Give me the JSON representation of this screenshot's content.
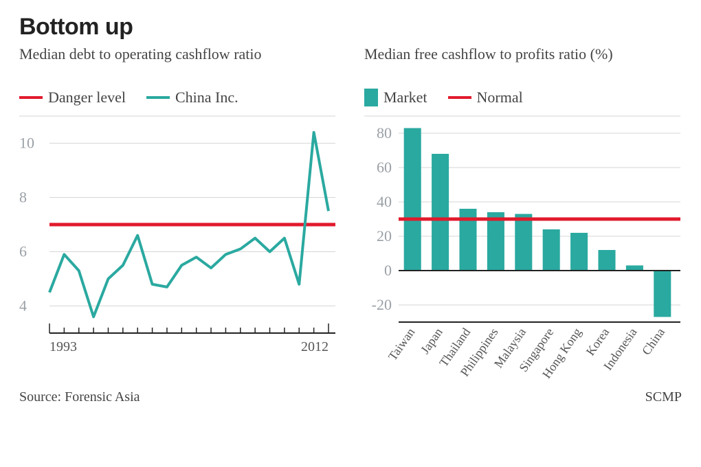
{
  "title": "Bottom up",
  "source": "Source: Forensic Asia",
  "credit": "SCMP",
  "colors": {
    "danger": "#e11a2c",
    "series": "#2aa9a0",
    "grid": "#d6d6d6",
    "axis": "#222222",
    "text_muted": "#9aa0a6",
    "bg": "#ffffff"
  },
  "left_chart": {
    "type": "line",
    "subtitle": "Median debt to operating cashflow ratio",
    "legend": [
      {
        "label": "Danger level",
        "kind": "line",
        "color": "#e11a2c"
      },
      {
        "label": "China Inc.",
        "kind": "line",
        "color": "#2aa9a0"
      }
    ],
    "x_start": 1993,
    "x_end": 2012,
    "x_tick_labels": [
      1993,
      2012
    ],
    "y_min": 3,
    "y_max": 11,
    "y_ticks": [
      4,
      6,
      8,
      10
    ],
    "danger_level": 7,
    "line_width": 4,
    "series": [
      {
        "x": 1993,
        "y": 4.5
      },
      {
        "x": 1994,
        "y": 5.9
      },
      {
        "x": 1995,
        "y": 5.3
      },
      {
        "x": 1996,
        "y": 3.6
      },
      {
        "x": 1997,
        "y": 5.0
      },
      {
        "x": 1998,
        "y": 5.5
      },
      {
        "x": 1999,
        "y": 6.6
      },
      {
        "x": 2000,
        "y": 4.8
      },
      {
        "x": 2001,
        "y": 4.7
      },
      {
        "x": 2002,
        "y": 5.5
      },
      {
        "x": 2003,
        "y": 5.8
      },
      {
        "x": 2004,
        "y": 5.4
      },
      {
        "x": 2005,
        "y": 5.9
      },
      {
        "x": 2006,
        "y": 6.1
      },
      {
        "x": 2007,
        "y": 6.5
      },
      {
        "x": 2008,
        "y": 6.0
      },
      {
        "x": 2009,
        "y": 6.5
      },
      {
        "x": 2010,
        "y": 4.8
      },
      {
        "x": 2011,
        "y": 10.4
      },
      {
        "x": 2012,
        "y": 7.5
      }
    ]
  },
  "right_chart": {
    "type": "bar",
    "subtitle": "Median free cashflow to profits ratio (%)",
    "legend": [
      {
        "label": "Market",
        "kind": "box",
        "color": "#2aa9a0"
      },
      {
        "label": "Normal",
        "kind": "line",
        "color": "#e11a2c"
      }
    ],
    "y_min": -30,
    "y_max": 90,
    "y_ticks": [
      -20,
      0,
      20,
      40,
      60,
      80
    ],
    "normal_level": 30,
    "bar_color": "#2aa9a0",
    "bar_width": 0.62,
    "categories": [
      "Taiwan",
      "Japan",
      "Thailand",
      "Philippines",
      "Malaysia",
      "Singapore",
      "Hong Kong",
      "Korea",
      "Indonesia",
      "China"
    ],
    "values": [
      83,
      68,
      36,
      34,
      33,
      24,
      22,
      12,
      3,
      -27
    ]
  }
}
